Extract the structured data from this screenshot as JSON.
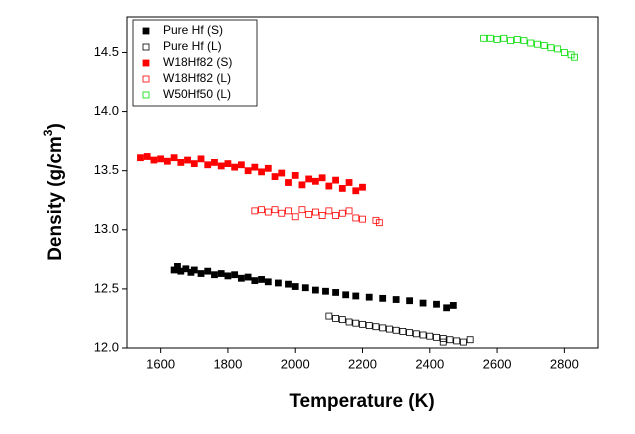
{
  "chart_data": {
    "type": "scatter",
    "xlabel": "Temperature (K)",
    "ylabel": [
      "Density (g/cm",
      "3",
      ")"
    ],
    "xlim": [
      1500,
      2900
    ],
    "xticks": [
      1600,
      1800,
      2000,
      2200,
      2400,
      2600,
      2800
    ],
    "ylim": [
      12.0,
      14.8
    ],
    "yticks": [
      {
        "value": 12.0,
        "label": "12.0"
      },
      12.5,
      {
        "value": 13.0,
        "label": "13.0"
      },
      13.5,
      {
        "value": 14.0,
        "label": "14.0"
      },
      14.5
    ],
    "legend": "upper-left",
    "series": [
      {
        "name": "Pure Hf (S)",
        "color": "#000000",
        "filled": true,
        "x": [
          1640,
          1650,
          1660,
          1675,
          1690,
          1700,
          1720,
          1740,
          1760,
          1780,
          1800,
          1820,
          1840,
          1860,
          1880,
          1900,
          1920,
          1950,
          1980,
          2000,
          2030,
          2060,
          2090,
          2120,
          2150,
          2180,
          2220,
          2260,
          2300,
          2340,
          2380,
          2420,
          2450,
          2470
        ],
        "values": [
          12.66,
          12.69,
          12.65,
          12.67,
          12.64,
          12.66,
          12.63,
          12.65,
          12.62,
          12.63,
          12.61,
          12.62,
          12.59,
          12.6,
          12.57,
          12.58,
          12.56,
          12.55,
          12.54,
          12.52,
          12.51,
          12.49,
          12.48,
          12.47,
          12.45,
          12.44,
          12.43,
          12.42,
          12.41,
          12.4,
          12.38,
          12.37,
          12.34,
          12.36
        ]
      },
      {
        "name": "Pure Hf (L)",
        "color": "#000000",
        "filled": false,
        "x": [
          2100,
          2120,
          2140,
          2160,
          2180,
          2200,
          2220,
          2240,
          2260,
          2280,
          2300,
          2320,
          2340,
          2360,
          2380,
          2400,
          2420,
          2440,
          2460,
          2480,
          2500,
          2520,
          2440
        ],
        "values": [
          12.27,
          12.25,
          12.24,
          12.22,
          12.21,
          12.2,
          12.19,
          12.18,
          12.17,
          12.16,
          12.15,
          12.14,
          12.13,
          12.12,
          12.11,
          12.1,
          12.09,
          12.08,
          12.07,
          12.06,
          12.05,
          12.07,
          12.05
        ]
      },
      {
        "name": "W18Hf82 (S)",
        "color": "#ff0000",
        "filled": true,
        "x": [
          1540,
          1560,
          1580,
          1600,
          1620,
          1640,
          1660,
          1680,
          1700,
          1720,
          1740,
          1760,
          1780,
          1800,
          1820,
          1840,
          1860,
          1880,
          1900,
          1920,
          1940,
          1960,
          1980,
          2000,
          2020,
          2040,
          2060,
          2080,
          2100,
          2120,
          2140,
          2160,
          2180,
          2200
        ],
        "values": [
          13.61,
          13.62,
          13.59,
          13.6,
          13.58,
          13.61,
          13.57,
          13.59,
          13.56,
          13.6,
          13.55,
          13.57,
          13.54,
          13.56,
          13.53,
          13.55,
          13.5,
          13.53,
          13.49,
          13.52,
          13.45,
          13.48,
          13.4,
          13.46,
          13.38,
          13.43,
          13.41,
          13.44,
          13.37,
          13.42,
          13.35,
          13.4,
          13.33,
          13.36
        ]
      },
      {
        "name": "W18Hf82 (L)",
        "color": "#ff0000",
        "filled": false,
        "x": [
          1880,
          1900,
          1920,
          1940,
          1960,
          1980,
          2000,
          2020,
          2040,
          2060,
          2080,
          2100,
          2120,
          2140,
          2160,
          2180,
          2200,
          2240,
          2250
        ],
        "values": [
          13.16,
          13.17,
          13.15,
          13.17,
          13.14,
          13.16,
          13.11,
          13.17,
          13.13,
          13.15,
          13.12,
          13.16,
          13.12,
          13.14,
          13.16,
          13.1,
          13.09,
          13.08,
          13.06
        ]
      },
      {
        "name": "W50Hf50 (L)",
        "color": "#00dd00",
        "filled": false,
        "x": [
          2560,
          2580,
          2600,
          2620,
          2640,
          2660,
          2680,
          2700,
          2720,
          2740,
          2760,
          2780,
          2800,
          2820,
          2830
        ],
        "values": [
          14.62,
          14.62,
          14.61,
          14.62,
          14.6,
          14.61,
          14.6,
          14.58,
          14.57,
          14.56,
          14.54,
          14.53,
          14.5,
          14.48,
          14.46
        ]
      }
    ]
  }
}
